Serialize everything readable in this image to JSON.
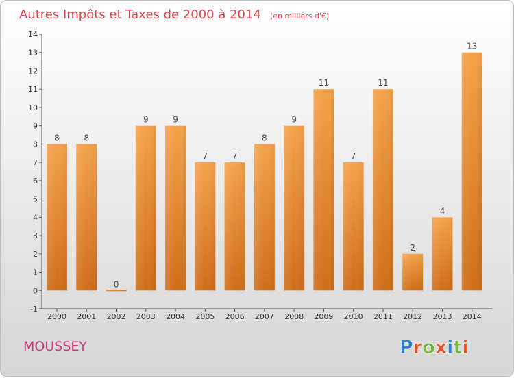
{
  "title": "Autres Impôts et Taxes de 2000 à 2014",
  "subtitle": "(en milliers d'€)",
  "place_name": "MOUSSEY",
  "logo": {
    "text": "Proxiti",
    "letter_colors": [
      "#2a7fd4",
      "#e8501e",
      "#74b743",
      "#e8501e",
      "#2a7fd4",
      "#74b743",
      "#e8501e"
    ]
  },
  "colors": {
    "bar_top": "#f4a24a",
    "bar_bottom": "#cf6d1a",
    "title": "#e0454a",
    "place": "#c93a7d"
  },
  "chart_data": {
    "type": "bar",
    "categories": [
      "2000",
      "2001",
      "2002",
      "2003",
      "2004",
      "2005",
      "2006",
      "2007",
      "2008",
      "2009",
      "2010",
      "2011",
      "2012",
      "2013",
      "2014"
    ],
    "values": [
      8,
      8,
      0,
      9,
      9,
      7,
      7,
      8,
      9,
      11,
      7,
      11,
      2,
      4,
      13
    ],
    "y_ticks": [
      "-1",
      "0",
      "1",
      "2",
      "3",
      "4",
      "5",
      "6",
      "7",
      "8",
      "9",
      "10",
      "11",
      "12",
      "13",
      "14"
    ],
    "ylim": [
      -1,
      14
    ],
    "grid": false
  }
}
